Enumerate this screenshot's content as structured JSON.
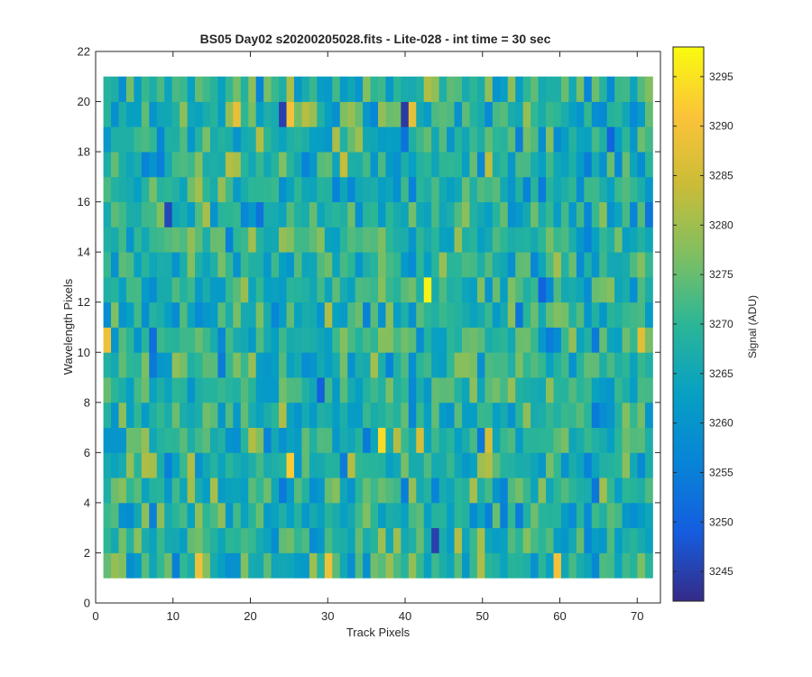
{
  "chart_data": {
    "type": "heatmap",
    "title": "BS05 Day02  s20200205028.fits - Lite-028 - int time = 30 sec",
    "xlabel": "Track Pixels",
    "ylabel": "Wavelength Pixels",
    "xlim": [
      0,
      73
    ],
    "ylim": [
      0,
      22
    ],
    "x_ticks": [
      "0",
      "10",
      "20",
      "30",
      "40",
      "50",
      "60",
      "70"
    ],
    "y_ticks": [
      "0",
      "2",
      "4",
      "6",
      "8",
      "10",
      "12",
      "14",
      "16",
      "18",
      "20",
      "22"
    ],
    "x_range": [
      1,
      72
    ],
    "y_range": [
      1,
      21
    ],
    "colorbar": {
      "label": "Signal (ADU)",
      "range": [
        3242,
        3298
      ],
      "ticks": [
        "3245",
        "3250",
        "3255",
        "3260",
        "3265",
        "3270",
        "3275",
        "3280",
        "3285",
        "3290",
        "3295"
      ],
      "colormap": "parula"
    },
    "value_stats": {
      "mean": 3268,
      "std": 6
    },
    "notable_values": [
      {
        "x": 43,
        "y": 12.5,
        "value": 3297
      },
      {
        "x": 37,
        "y": 6.5,
        "value": 3294
      },
      {
        "x": 25,
        "y": 5.5,
        "value": 3292
      },
      {
        "x": 25,
        "y": 19.5,
        "value": 3290
      },
      {
        "x": 18,
        "y": 19.5,
        "value": 3288
      },
      {
        "x": 13,
        "y": 1.5,
        "value": 3289
      },
      {
        "x": 30,
        "y": 1.5,
        "value": 3289
      },
      {
        "x": 60,
        "y": 1.5,
        "value": 3290
      },
      {
        "x": 1,
        "y": 10.5,
        "value": 3289
      },
      {
        "x": 71,
        "y": 10.5,
        "value": 3287
      },
      {
        "x": 41,
        "y": 19.5,
        "value": 3288
      },
      {
        "x": 42,
        "y": 6.5,
        "value": 3286
      },
      {
        "x": 24,
        "y": 19.5,
        "value": 3245
      },
      {
        "x": 40,
        "y": 19.5,
        "value": 3244
      },
      {
        "x": 44,
        "y": 2.5,
        "value": 3245
      },
      {
        "x": 9,
        "y": 15.5,
        "value": 3246
      },
      {
        "x": 58,
        "y": 12.5,
        "value": 3250
      },
      {
        "x": 67,
        "y": 18.5,
        "value": 3250
      }
    ]
  }
}
